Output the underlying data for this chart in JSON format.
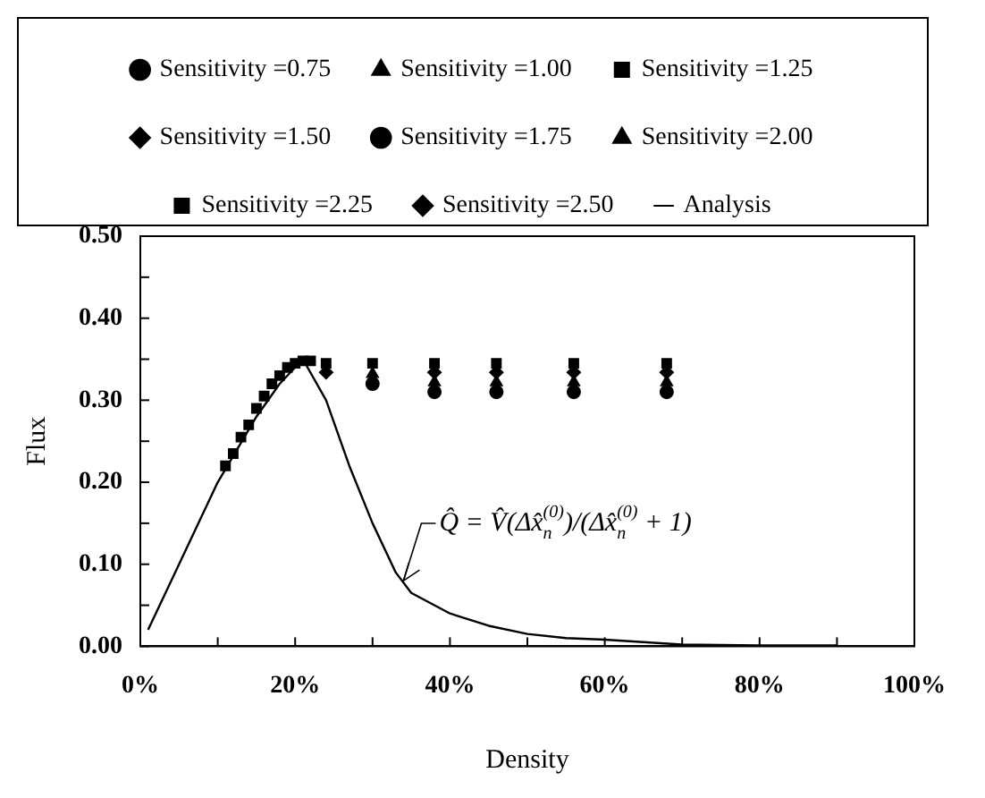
{
  "chart_data": {
    "type": "scatter",
    "xlabel": "Density",
    "ylabel": "Flux",
    "legend": "top",
    "grid": false,
    "xlim": [
      0,
      100
    ],
    "ylim": [
      0,
      0.5
    ],
    "xticks": [
      {
        "value": 0,
        "label": "0%"
      },
      {
        "value": 10,
        "label": null
      },
      {
        "value": 20,
        "label": "20%"
      },
      {
        "value": 30,
        "label": null
      },
      {
        "value": 40,
        "label": "40%"
      },
      {
        "value": 50,
        "label": null
      },
      {
        "value": 60,
        "label": "60%"
      },
      {
        "value": 70,
        "label": null
      },
      {
        "value": 80,
        "label": "80%"
      },
      {
        "value": 90,
        "label": null
      },
      {
        "value": 100,
        "label": "100%"
      }
    ],
    "yticks": [
      {
        "value": 0,
        "label": "0.00"
      },
      {
        "value": 0.05,
        "label": null
      },
      {
        "value": 0.1,
        "label": "0.10"
      },
      {
        "value": 0.15,
        "label": null
      },
      {
        "value": 0.2,
        "label": "0.20"
      },
      {
        "value": 0.25,
        "label": null
      },
      {
        "value": 0.3,
        "label": "0.30"
      },
      {
        "value": 0.35,
        "label": null
      },
      {
        "value": 0.4,
        "label": "0.40"
      },
      {
        "value": 0.45,
        "label": null
      },
      {
        "value": 0.5,
        "label": "0.50"
      }
    ],
    "x": [
      11,
      12,
      13,
      14,
      15,
      16,
      17,
      18,
      19,
      20,
      21,
      22,
      24,
      30,
      38,
      46,
      56,
      68
    ],
    "series": [
      {
        "name": "Sensitivity =0.75",
        "color": "#000000",
        "marker": "circle",
        "values": [
          null,
          null,
          null,
          null,
          null,
          null,
          null,
          null,
          null,
          null,
          null,
          null,
          null,
          0.32,
          0.31,
          0.31,
          0.31,
          0.31
        ]
      },
      {
        "name": "Sensitivity =1.00",
        "color": "#000000",
        "marker": "triangle",
        "values": [
          null,
          null,
          null,
          null,
          null,
          null,
          null,
          null,
          null,
          null,
          null,
          null,
          null,
          0.332,
          0.322,
          0.322,
          0.322,
          0.322
        ]
      },
      {
        "name": "Sensitivity =1.25",
        "color": "#000000",
        "marker": "square",
        "values": [
          0.22,
          0.235,
          0.255,
          0.27,
          0.29,
          0.305,
          0.32,
          0.33,
          0.34,
          0.345,
          0.348,
          0.348,
          0.345,
          0.345,
          0.345,
          0.345,
          0.345,
          0.345
        ]
      },
      {
        "name": "Sensitivity =1.50",
        "color": "#000000",
        "marker": "diamond",
        "values": [
          null,
          null,
          null,
          null,
          null,
          null,
          null,
          null,
          null,
          null,
          null,
          null,
          0.334,
          null,
          0.334,
          0.334,
          0.334,
          0.334
        ]
      },
      {
        "name": "Sensitivity =1.75",
        "color": "#000000",
        "marker": "circle",
        "values": [
          null,
          null,
          null,
          null,
          null,
          null,
          null,
          null,
          null,
          null,
          null,
          null,
          null,
          null,
          null,
          null,
          null,
          null
        ]
      },
      {
        "name": "Sensitivity =2.00",
        "color": "#000000",
        "marker": "triangle",
        "values": [
          null,
          null,
          null,
          null,
          null,
          null,
          null,
          null,
          null,
          null,
          null,
          null,
          null,
          null,
          null,
          null,
          null,
          null
        ]
      },
      {
        "name": "Sensitivity =2.25",
        "color": "#000000",
        "marker": "square",
        "values": [
          null,
          null,
          null,
          null,
          null,
          null,
          null,
          null,
          null,
          null,
          null,
          null,
          null,
          null,
          null,
          null,
          null,
          null
        ]
      },
      {
        "name": "Sensitivity =2.50",
        "color": "#000000",
        "marker": "diamond",
        "values": [
          null,
          null,
          null,
          null,
          null,
          null,
          null,
          null,
          null,
          null,
          null,
          null,
          null,
          null,
          null,
          null,
          null,
          null
        ]
      },
      {
        "name": "Analysis",
        "type": "line",
        "color": "#000000",
        "marker": "none",
        "line_style": "solid",
        "x": [
          1,
          5,
          10,
          15,
          18,
          21,
          24,
          27,
          30,
          33,
          35,
          40,
          45,
          50,
          55,
          60,
          70,
          80,
          90
        ],
        "values": [
          0.02,
          0.1,
          0.2,
          0.28,
          0.32,
          0.35,
          0.3,
          0.22,
          0.15,
          0.09,
          0.065,
          0.04,
          0.025,
          0.015,
          0.01,
          0.008,
          0.002,
          0.001,
          0.001
        ]
      }
    ],
    "annotations": [
      {
        "text": "Q̂ = V̂(Δx̂$_{n}$$^{(0)}$)/(Δx̂$_{n}$$^{(0)}$ + 1)",
        "x": 34,
        "y": 0.08
      }
    ]
  }
}
